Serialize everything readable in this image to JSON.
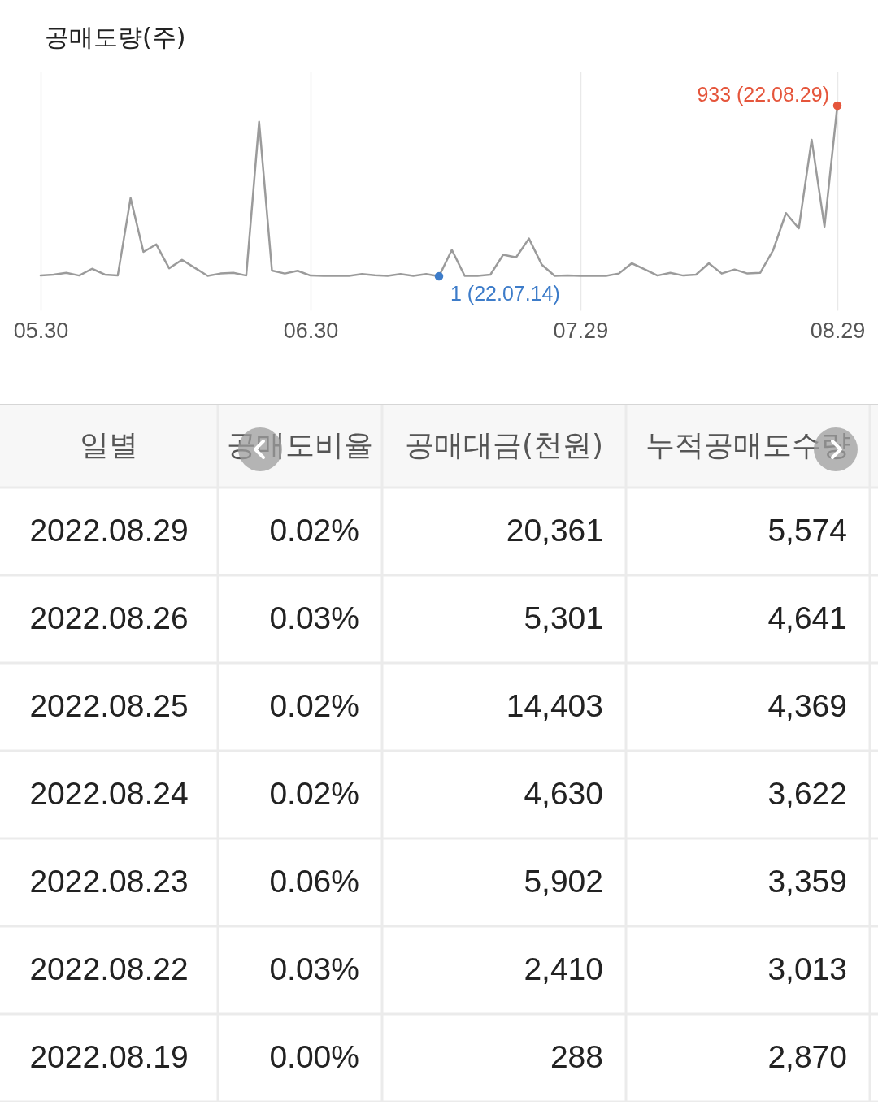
{
  "chart_data": [
    {
      "type": "line",
      "title": "공매도량(주)",
      "categories": [
        "05.30",
        null,
        null,
        null,
        null,
        null,
        null,
        null,
        null,
        null,
        null,
        null,
        null,
        null,
        null,
        null,
        null,
        null,
        null,
        null,
        null,
        "06.30",
        null,
        null,
        null,
        null,
        null,
        null,
        null,
        null,
        null,
        null,
        null,
        null,
        null,
        null,
        null,
        null,
        null,
        null,
        null,
        null,
        "07.29",
        null,
        null,
        null,
        null,
        null,
        null,
        null,
        null,
        null,
        null,
        null,
        null,
        null,
        null,
        null,
        null,
        null,
        null,
        null,
        "08.29"
      ],
      "series": [
        {
          "color": "#9b9b9b",
          "values": [
            5,
            10,
            20,
            5,
            42,
            10,
            5,
            428,
            134,
            175,
            45,
            91,
            47,
            3,
            16,
            20,
            5,
            845,
            32,
            16,
            31,
            5,
            3,
            3,
            3,
            13,
            7,
            3,
            13,
            3,
            13,
            1,
            145,
            3,
            3,
            10,
            119,
            104,
            207,
            64,
            3,
            5,
            3,
            3,
            3,
            16,
            72,
            39,
            5,
            20,
            5,
            10,
            72,
            16,
            38,
            16,
            20,
            143,
            346,
            263,
            747,
            272,
            933
          ]
        },
        {
          "type": "scatter",
          "color": "#9b9b9b",
          "values": [
            null,
            null,
            null,
            null,
            null,
            null,
            null,
            null,
            null,
            null,
            null,
            null,
            null,
            null,
            null,
            null,
            null,
            null,
            null,
            null,
            null,
            null,
            null,
            null,
            null,
            null,
            null,
            null,
            null,
            null,
            null,
            1,
            null,
            null,
            null,
            null,
            null,
            null,
            null,
            null,
            null,
            null,
            null,
            null,
            null,
            null,
            null,
            null,
            null,
            null,
            null,
            null,
            null,
            null,
            null,
            null,
            null,
            null,
            null,
            null,
            null,
            null,
            933
          ],
          "colors": [
            null,
            null,
            null,
            null,
            null,
            null,
            null,
            null,
            null,
            null,
            null,
            null,
            null,
            null,
            null,
            null,
            null,
            null,
            null,
            null,
            null,
            null,
            null,
            null,
            null,
            null,
            null,
            null,
            null,
            null,
            null,
            "#3d7cc9",
            null,
            null,
            null,
            null,
            null,
            null,
            null,
            null,
            null,
            null,
            null,
            null,
            null,
            null,
            null,
            null,
            null,
            null,
            null,
            null,
            null,
            null,
            null,
            null,
            null,
            null,
            null,
            null,
            null,
            null,
            "#e5553b"
          ],
          "value_labels": [
            null,
            null,
            null,
            null,
            null,
            null,
            null,
            null,
            null,
            null,
            null,
            null,
            null,
            null,
            null,
            null,
            null,
            null,
            null,
            null,
            null,
            null,
            null,
            null,
            null,
            null,
            null,
            null,
            null,
            null,
            null,
            "1 (22.07.14)",
            null,
            null,
            null,
            null,
            null,
            null,
            null,
            null,
            null,
            null,
            null,
            null,
            null,
            null,
            null,
            null,
            null,
            null,
            null,
            null,
            null,
            null,
            null,
            null,
            null,
            null,
            null,
            null,
            null,
            null,
            "933 (22.08.29)"
          ]
        }
      ],
      "grid": "x",
      "tick_labels": "x"
    },
    {
      "type": "other",
      "xlabel": "일별",
      "categories": [
        "2022.08.29",
        "2022.08.26",
        "2022.08.25",
        "2022.08.24",
        "2022.08.23",
        "2022.08.22",
        "2022.08.19"
      ],
      "series": [
        {
          "name": "공매도비율",
          "values": [
            0.02,
            0.03,
            0.02,
            0.02,
            0.06,
            0.03,
            0.0
          ],
          "value_labels": [
            "0.02%",
            "0.03%",
            "0.02%",
            "0.02%",
            "0.06%",
            "0.03%",
            "0.00%"
          ]
        },
        {
          "name": "공매대금(천원)",
          "values": [
            20361,
            5301,
            14403,
            4630,
            5902,
            2410,
            288
          ],
          "value_labels": [
            "20,361",
            "5,301",
            "14,403",
            "4,630",
            "5,902",
            "2,410",
            "288"
          ]
        },
        {
          "name": "누적공매도수량",
          "values": [
            5574,
            4641,
            4369,
            3622,
            3359,
            3013,
            2870
          ],
          "value_labels": [
            "5,574",
            "4,641",
            "4,369",
            "3,622",
            "3,359",
            "3,013",
            "2,870"
          ]
        }
      ]
    }
  ]
}
